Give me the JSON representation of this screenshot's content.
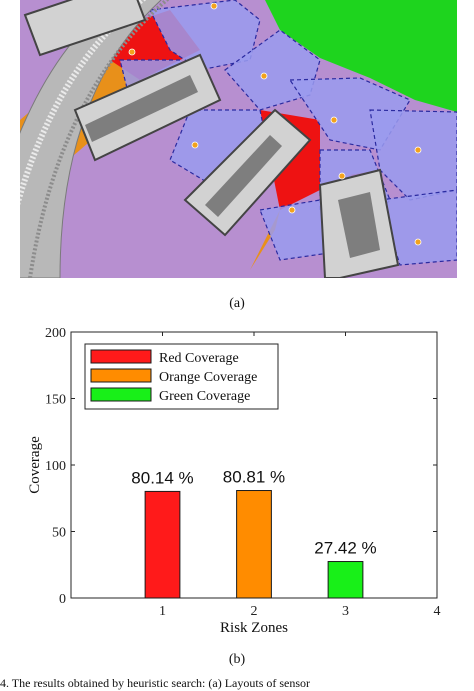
{
  "figure": {
    "caption_a": "(a)",
    "caption_b": "(b)",
    "footnote": "4. The results obtained by heuristic search: (a) Layouts of sensor"
  },
  "map": {
    "colors": {
      "background_purple": "#b78fd0",
      "coverage_blue": "#9a9bef",
      "green_zone": "#1ed41e",
      "red_zone": "#ee1212",
      "orange_zone": "#e8901a",
      "sensor_dot": "#f3a21c",
      "outline": "#2a2aa0",
      "track_gray": "#b8b8b8",
      "block_gray": "#d2d2d2"
    }
  },
  "chart_data": {
    "type": "bar",
    "categories": [
      "1",
      "2",
      "3"
    ],
    "values": [
      80.14,
      80.81,
      27.42
    ],
    "bar_colors": [
      "#ff1a1a",
      "#ff8c00",
      "#18f018"
    ],
    "data_labels": [
      "80.14 %",
      "80.81 %",
      "27.42 %"
    ],
    "xlabel": "Risk Zones",
    "ylabel": "Coverage",
    "xlim": [
      0,
      4
    ],
    "ylim": [
      0,
      200
    ],
    "xticks": [
      "1",
      "2",
      "3",
      "4"
    ],
    "yticks": [
      "0",
      "50",
      "100",
      "150",
      "200"
    ],
    "grid": false,
    "legend": {
      "position": "top-left",
      "entries": [
        {
          "label": "Red Coverage",
          "color": "#ff1a1a"
        },
        {
          "label": "Orange Coverage",
          "color": "#ff8c00"
        },
        {
          "label": "Green Coverage",
          "color": "#18f018"
        }
      ]
    }
  }
}
